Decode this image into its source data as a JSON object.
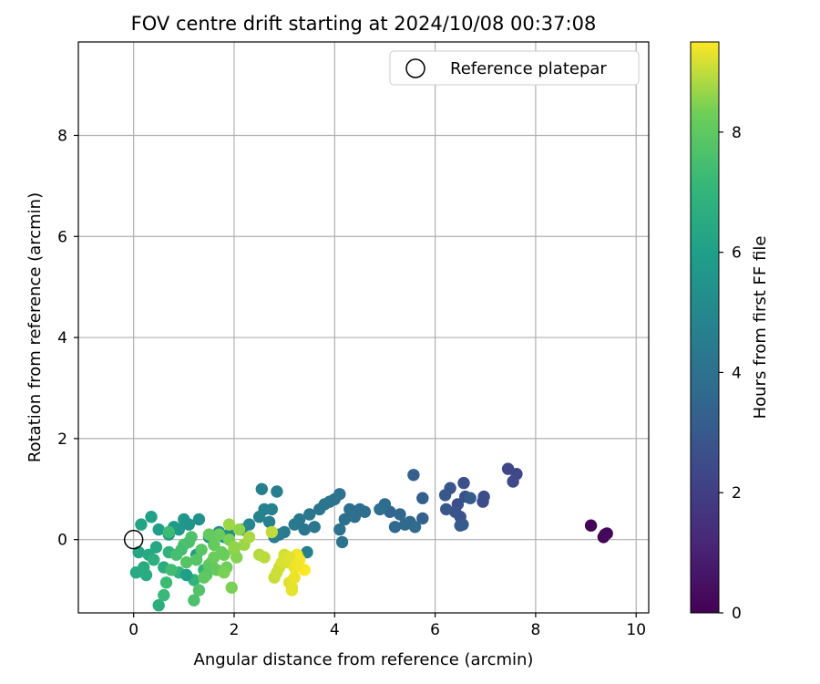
{
  "chart_data": {
    "type": "scatter",
    "title": "FOV centre drift starting at 2024/10/08 00:37:08",
    "xlabel": "Angular distance from reference (arcmin)",
    "ylabel": "Rotation from reference (arcmin)",
    "colorbar_label": "Hours from first FF file",
    "xlim": [
      -1.1,
      10.25
    ],
    "ylim": [
      -1.45,
      9.85
    ],
    "clim": [
      0,
      9.5
    ],
    "colormap": "viridis",
    "grid": true,
    "legend_position": "top-right",
    "xticks": [
      "0",
      "2",
      "4",
      "6",
      "8",
      "10"
    ],
    "yticks": [
      "0",
      "2",
      "4",
      "6",
      "8"
    ],
    "cticks": [
      "0",
      "2",
      "4",
      "6",
      "8"
    ],
    "reference": {
      "label": "Reference platepar",
      "x": 0,
      "y": 0
    },
    "series": [
      {
        "x": [
          9.1,
          9.35,
          9.42,
          9.38
        ],
        "y": [
          0.28,
          0.05,
          0.12,
          0.1
        ],
        "hours": [
          0.1,
          0.15,
          0.2,
          0.25
        ]
      },
      {
        "x": [
          7.45,
          7.62,
          7.55,
          6.95,
          6.97,
          6.57,
          6.45,
          6.6,
          6.5,
          6.4,
          6.3,
          6.22,
          6.2,
          6.5,
          6.55,
          6.7,
          5.57,
          5.75,
          5.75
        ],
        "y": [
          1.4,
          1.3,
          1.15,
          0.75,
          0.85,
          1.12,
          0.7,
          0.85,
          0.45,
          0.55,
          1.02,
          0.6,
          0.88,
          0.28,
          0.3,
          0.82,
          1.28,
          0.82,
          0.42
        ],
        "hours": [
          2.3,
          2.35,
          2.4,
          2.5,
          2.55,
          2.6,
          2.65,
          2.7,
          2.75,
          2.8,
          2.85,
          2.9,
          2.95,
          3.0,
          3.05,
          3.1,
          3.2,
          3.25,
          3.3
        ]
      },
      {
        "x": [
          5.1,
          5.3,
          5.5,
          5.2,
          5.4,
          5.6,
          5.0,
          4.9,
          4.6,
          4.3,
          4.1,
          4.0,
          3.9,
          3.8,
          3.7,
          3.5,
          3.3,
          3.2,
          3.0,
          2.9,
          2.8,
          4.2,
          4.1,
          4.15,
          3.4,
          3.6,
          2.85,
          4.4,
          4.5
        ],
        "y": [
          0.55,
          0.5,
          0.35,
          0.25,
          0.3,
          0.25,
          0.7,
          0.6,
          0.55,
          0.6,
          0.9,
          0.8,
          0.75,
          0.7,
          0.6,
          0.5,
          0.4,
          0.3,
          0.15,
          0.1,
          0.05,
          0.4,
          0.2,
          -0.05,
          0.2,
          0.25,
          0.95,
          0.45,
          0.6
        ],
        "hours": [
          3.5,
          3.55,
          3.6,
          3.65,
          3.7,
          3.75,
          3.8,
          3.85,
          3.9,
          3.95,
          4.0,
          4.05,
          4.1,
          4.15,
          4.2,
          4.25,
          4.3,
          4.35,
          4.4,
          4.45,
          4.5,
          3.95,
          4.0,
          4.05,
          4.2,
          4.25,
          4.5,
          3.9,
          3.85
        ]
      },
      {
        "x": [
          2.55,
          2.75,
          2.6,
          2.5,
          2.3,
          2.15,
          1.9,
          1.7,
          1.5,
          3.45,
          2.7
        ],
        "y": [
          1.0,
          0.6,
          0.6,
          0.45,
          0.3,
          0.2,
          0.1,
          0.15,
          0.05,
          -0.25,
          0.35
        ],
        "hours": [
          4.6,
          4.7,
          4.75,
          4.8,
          4.9,
          5.0,
          5.1,
          5.2,
          5.3,
          4.6,
          4.7
        ]
      },
      {
        "x": [
          1.3,
          1.1,
          1.0,
          0.9,
          0.8,
          0.7,
          0.5,
          0.35,
          0.15,
          0.1,
          0.05,
          0.2,
          0.3,
          0.6,
          0.5,
          0.4,
          0.7,
          0.9,
          1.2,
          1.4,
          0.25,
          0.45,
          1.6,
          1.8,
          1.05,
          1.25
        ],
        "y": [
          0.4,
          0.3,
          0.4,
          0.2,
          0.25,
          0.1,
          0.2,
          0.45,
          0.3,
          -0.25,
          -0.65,
          -0.55,
          -0.3,
          -0.55,
          -1.3,
          -0.4,
          -0.25,
          -0.65,
          -0.8,
          -0.6,
          -0.7,
          -0.15,
          -0.1,
          0.05,
          -0.7,
          -0.3
        ],
        "hours": [
          5.4,
          5.5,
          5.6,
          5.7,
          5.8,
          5.9,
          6.0,
          6.1,
          6.2,
          6.3,
          6.4,
          6.5,
          6.45,
          6.6,
          6.7,
          6.75,
          6.8,
          6.85,
          6.9,
          7.0,
          6.55,
          6.35,
          5.5,
          5.45,
          6.0,
          5.9
        ]
      },
      {
        "x": [
          0.6,
          0.65,
          0.75,
          0.85,
          1.0,
          1.15,
          1.25,
          1.35,
          1.5,
          1.6,
          1.7,
          1.8,
          1.9,
          2.0,
          2.1,
          2.2,
          2.3,
          1.2,
          1.3,
          1.45,
          1.55,
          1.65,
          1.75,
          1.85,
          1.95,
          2.05,
          0.95,
          1.1,
          1.4,
          1.6,
          1.8,
          2.0,
          1.9,
          0.7,
          1.05,
          1.5
        ],
        "y": [
          -1.1,
          -0.85,
          -0.6,
          -0.3,
          -0.1,
          0.05,
          -0.4,
          -0.2,
          -0.5,
          -0.1,
          0.1,
          -0.3,
          0.0,
          -0.2,
          0.2,
          -0.1,
          0.05,
          -1.2,
          -1.0,
          -0.7,
          -0.45,
          -0.6,
          -0.25,
          -0.55,
          -0.95,
          -0.35,
          -0.2,
          -0.05,
          -0.75,
          -0.35,
          -0.65,
          -0.15,
          0.3,
          0.15,
          -0.45,
          0.1
        ],
        "hours": [
          7.2,
          7.3,
          7.4,
          7.5,
          7.6,
          7.7,
          7.8,
          7.9,
          8.0,
          8.1,
          8.2,
          8.3,
          8.4,
          8.5,
          8.6,
          8.7,
          8.8,
          7.6,
          7.7,
          7.9,
          8.0,
          8.1,
          8.2,
          8.3,
          8.4,
          8.5,
          7.5,
          7.6,
          8.0,
          8.2,
          8.4,
          8.6,
          8.7,
          7.3,
          7.8,
          8.1
        ]
      },
      {
        "x": [
          2.5,
          2.6,
          2.75,
          2.8,
          2.9,
          3.0,
          3.05,
          3.1,
          3.15,
          3.2,
          3.25,
          3.3,
          3.4,
          3.15,
          3.2,
          2.95,
          3.1,
          3.25,
          2.85
        ],
        "y": [
          -0.3,
          -0.35,
          0.15,
          -0.75,
          -0.55,
          -0.3,
          -0.45,
          -0.85,
          -1.0,
          -0.55,
          -0.3,
          -0.4,
          -0.6,
          -0.95,
          -0.75,
          -0.45,
          -0.35,
          -0.5,
          -0.65
        ],
        "hours": [
          8.9,
          8.95,
          9.0,
          9.05,
          9.1,
          9.15,
          9.2,
          9.25,
          9.3,
          9.35,
          9.4,
          9.45,
          9.5,
          9.3,
          9.35,
          9.2,
          9.25,
          9.4,
          9.1
        ]
      }
    ]
  }
}
